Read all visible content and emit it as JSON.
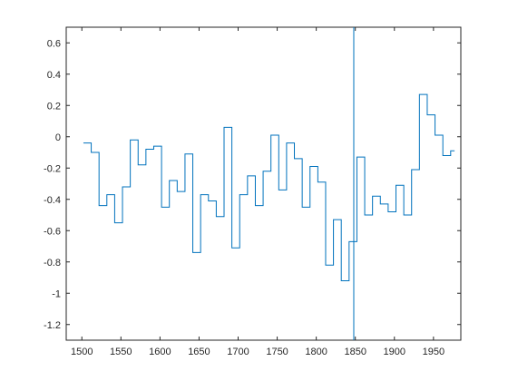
{
  "chart_data": {
    "type": "line",
    "title": "",
    "xlabel": "",
    "ylabel": "",
    "xlim": [
      1480,
      1985
    ],
    "ylim": [
      -1.3,
      0.7
    ],
    "xticks": [
      1500,
      1550,
      1600,
      1650,
      1700,
      1750,
      1800,
      1850,
      1900,
      1950
    ],
    "yticks": [
      0.6,
      0.4,
      0.2,
      0,
      -0.2,
      -0.4,
      -0.6,
      -0.8,
      -1,
      -1.2
    ],
    "xtick_labels": [
      "1500",
      "1550",
      "1600",
      "1650",
      "1700",
      "1750",
      "1800",
      "1850",
      "1900",
      "1950"
    ],
    "ytick_labels": [
      "0.6",
      "0.4",
      "0.2",
      "0",
      "-0.2",
      "-0.4",
      "-0.6",
      "-0.8",
      "-1",
      "-1.2"
    ],
    "grid": false,
    "line_color": "#0072BD",
    "vertical_line_x": 1848,
    "series": [
      {
        "step": true,
        "x": [
          1502,
          1507,
          1512,
          1517,
          1522,
          1527,
          1532,
          1537,
          1542,
          1547,
          1552,
          1557,
          1562,
          1567,
          1572,
          1577,
          1582,
          1587,
          1592,
          1597,
          1602,
          1607,
          1612,
          1617,
          1622,
          1627,
          1632,
          1637,
          1642,
          1647,
          1652,
          1657,
          1662,
          1667,
          1672,
          1677,
          1682,
          1687,
          1692,
          1697,
          1702,
          1707,
          1712,
          1717,
          1722,
          1727,
          1732,
          1737,
          1742,
          1747,
          1752,
          1757,
          1762,
          1767,
          1772,
          1777,
          1782,
          1787,
          1792,
          1797,
          1802,
          1807,
          1812,
          1817,
          1822,
          1827,
          1832,
          1837,
          1842,
          1847,
          1852,
          1857,
          1862,
          1867,
          1872,
          1877,
          1882,
          1887,
          1892,
          1897,
          1902,
          1907,
          1912,
          1917,
          1922,
          1927,
          1932,
          1937,
          1942,
          1947,
          1952,
          1957,
          1962,
          1967,
          1972,
          1977
        ],
        "y": [
          -0.04,
          -0.04,
          -0.1,
          -0.1,
          -0.44,
          -0.44,
          -0.37,
          -0.37,
          -0.55,
          -0.55,
          -0.32,
          -0.32,
          -0.02,
          -0.02,
          -0.18,
          -0.18,
          -0.08,
          -0.08,
          -0.06,
          -0.06,
          -0.45,
          -0.45,
          -0.28,
          -0.28,
          -0.35,
          -0.35,
          -0.11,
          -0.11,
          -0.74,
          -0.74,
          -0.37,
          -0.37,
          -0.41,
          -0.41,
          -0.51,
          -0.51,
          0.06,
          0.06,
          -0.71,
          -0.71,
          -0.37,
          -0.37,
          -0.25,
          -0.25,
          -0.44,
          -0.44,
          -0.22,
          -0.22,
          0.01,
          0.01,
          -0.34,
          -0.34,
          -0.04,
          -0.04,
          -0.14,
          -0.14,
          -0.45,
          -0.45,
          -0.19,
          -0.19,
          -0.29,
          -0.29,
          -0.82,
          -0.82,
          -0.53,
          -0.53,
          -0.92,
          -0.92,
          -0.67,
          -0.67,
          -0.13,
          -0.13,
          -0.5,
          -0.5,
          -0.38,
          -0.38,
          -0.43,
          -0.43,
          -0.48,
          -0.48,
          -0.31,
          -0.31,
          -0.5,
          -0.5,
          -0.21,
          -0.21,
          0.27,
          0.27,
          0.14,
          0.14,
          0.01,
          0.01,
          -0.12,
          -0.12,
          -0.09,
          -0.09
        ]
      }
    ]
  }
}
